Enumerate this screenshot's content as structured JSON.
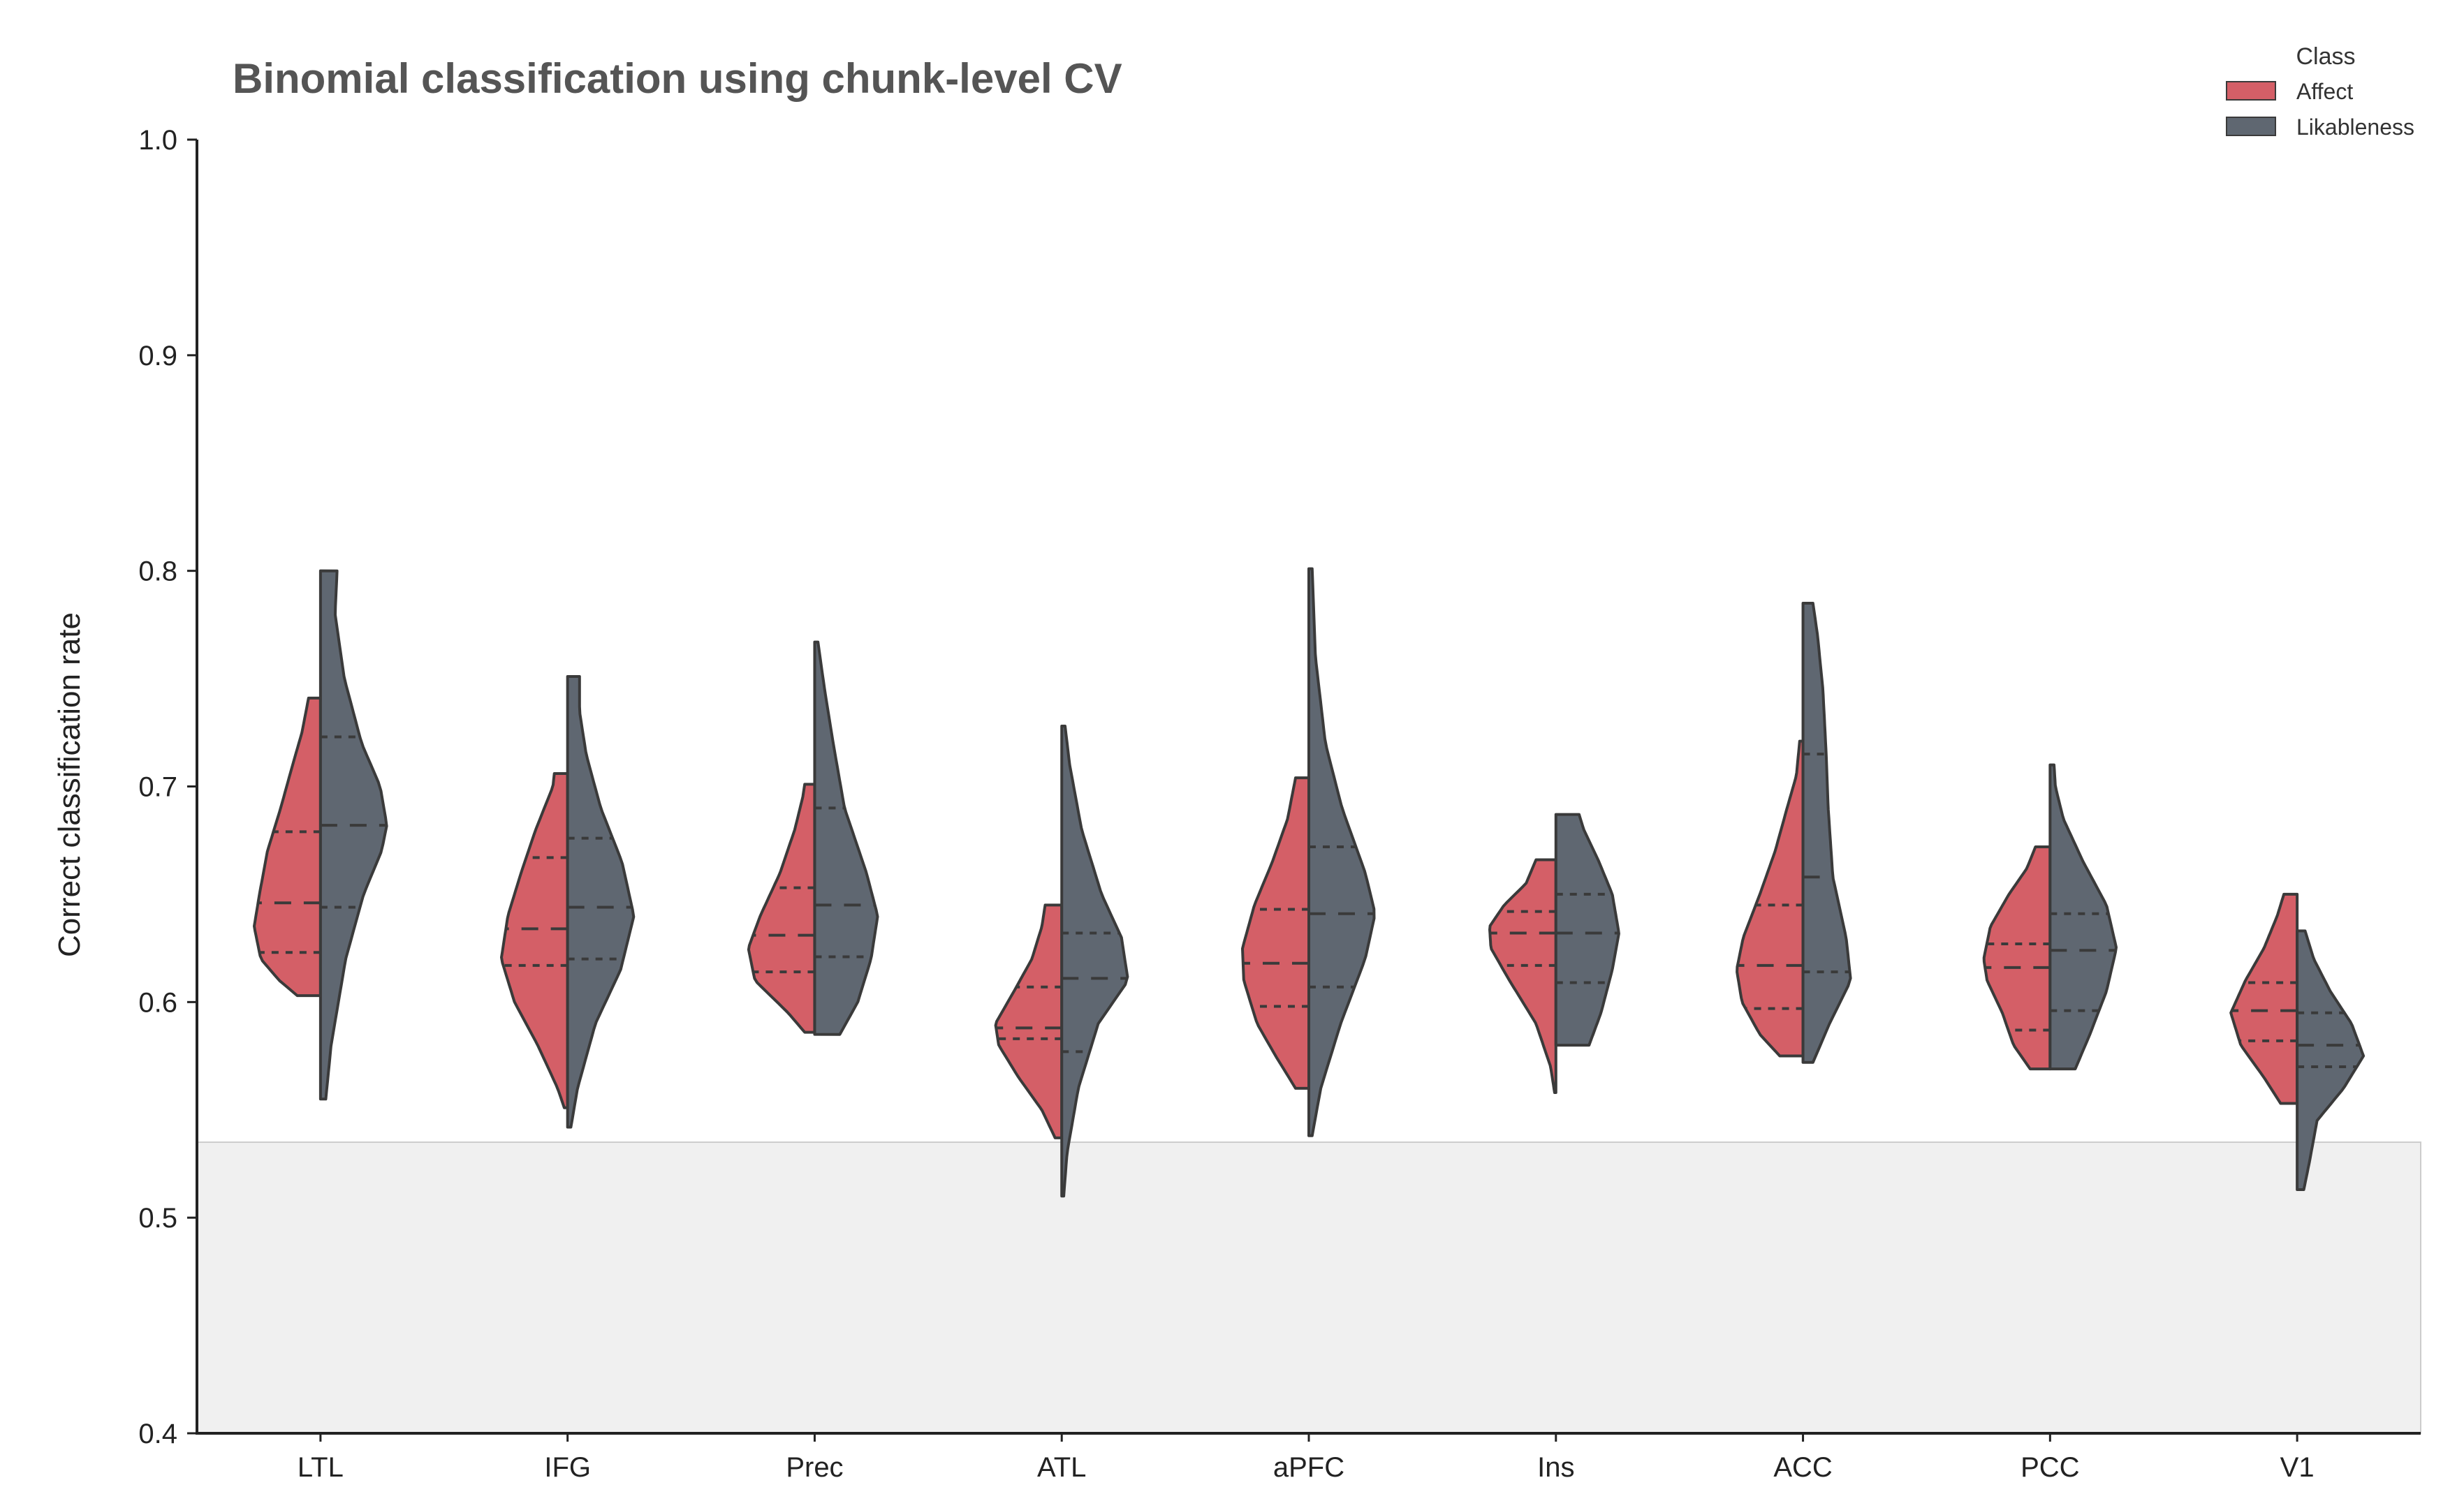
{
  "chart_data": {
    "type": "violin",
    "title": "Binomial classification using chunk-level CV",
    "xlabel": "",
    "ylabel": "Correct classification rate",
    "ylim": [
      0.4,
      1.0
    ],
    "yticks": [
      "0.4",
      "0.5",
      "0.6",
      "0.7",
      "0.8",
      "0.9",
      "1.0"
    ],
    "chance_region": [
      0.4,
      0.535
    ],
    "grid": false,
    "legend": {
      "title": "Class",
      "placement": "top-right"
    },
    "categories": [
      "LTL",
      "IFG",
      "Prec",
      "ATL",
      "aPFC",
      "Ins",
      "ACC",
      "PCC",
      "V1"
    ],
    "series": [
      {
        "name": "Affect",
        "color": "#d45f67",
        "distributions": [
          {
            "min": 0.603,
            "max": 0.741,
            "q1": 0.623,
            "median": 0.646,
            "q3": 0.679,
            "density": [
              [
                0.603,
                0.35
              ],
              [
                0.61,
                0.62
              ],
              [
                0.62,
                0.9
              ],
              [
                0.635,
                1.0
              ],
              [
                0.65,
                0.92
              ],
              [
                0.67,
                0.8
              ],
              [
                0.69,
                0.6
              ],
              [
                0.71,
                0.42
              ],
              [
                0.725,
                0.28
              ],
              [
                0.741,
                0.18
              ]
            ]
          },
          {
            "min": 0.551,
            "max": 0.706,
            "q1": 0.617,
            "median": 0.634,
            "q3": 0.667,
            "density": [
              [
                0.551,
                0.05
              ],
              [
                0.56,
                0.15
              ],
              [
                0.58,
                0.45
              ],
              [
                0.6,
                0.8
              ],
              [
                0.62,
                1.0
              ],
              [
                0.64,
                0.9
              ],
              [
                0.66,
                0.7
              ],
              [
                0.68,
                0.48
              ],
              [
                0.7,
                0.22
              ],
              [
                0.706,
                0.2
              ]
            ]
          },
          {
            "min": 0.586,
            "max": 0.701,
            "q1": 0.614,
            "median": 0.631,
            "q3": 0.653,
            "density": [
              [
                0.586,
                0.15
              ],
              [
                0.595,
                0.4
              ],
              [
                0.61,
                0.9
              ],
              [
                0.625,
                1.0
              ],
              [
                0.64,
                0.82
              ],
              [
                0.66,
                0.52
              ],
              [
                0.68,
                0.3
              ],
              [
                0.695,
                0.18
              ],
              [
                0.701,
                0.15
              ]
            ]
          },
          {
            "min": 0.537,
            "max": 0.645,
            "q1": 0.583,
            "median": 0.588,
            "q3": 0.607,
            "density": [
              [
                0.537,
                0.1
              ],
              [
                0.55,
                0.3
              ],
              [
                0.565,
                0.65
              ],
              [
                0.58,
                0.95
              ],
              [
                0.59,
                1.0
              ],
              [
                0.605,
                0.72
              ],
              [
                0.62,
                0.45
              ],
              [
                0.635,
                0.3
              ],
              [
                0.645,
                0.25
              ]
            ]
          },
          {
            "min": 0.56,
            "max": 0.704,
            "q1": 0.598,
            "median": 0.618,
            "q3": 0.643,
            "density": [
              [
                0.56,
                0.2
              ],
              [
                0.575,
                0.5
              ],
              [
                0.59,
                0.78
              ],
              [
                0.61,
                0.98
              ],
              [
                0.625,
                1.0
              ],
              [
                0.645,
                0.82
              ],
              [
                0.665,
                0.55
              ],
              [
                0.685,
                0.32
              ],
              [
                0.704,
                0.2
              ]
            ]
          },
          {
            "min": 0.558,
            "max": 0.666,
            "q1": 0.617,
            "median": 0.632,
            "q3": 0.642,
            "density": [
              [
                0.558,
                0.02
              ],
              [
                0.57,
                0.08
              ],
              [
                0.59,
                0.3
              ],
              [
                0.61,
                0.7
              ],
              [
                0.625,
                0.98
              ],
              [
                0.635,
                1.0
              ],
              [
                0.645,
                0.78
              ],
              [
                0.655,
                0.45
              ],
              [
                0.666,
                0.3
              ]
            ]
          },
          {
            "min": 0.575,
            "max": 0.721,
            "q1": 0.597,
            "median": 0.617,
            "q3": 0.645,
            "density": [
              [
                0.575,
                0.35
              ],
              [
                0.585,
                0.65
              ],
              [
                0.6,
                0.92
              ],
              [
                0.615,
                1.0
              ],
              [
                0.63,
                0.9
              ],
              [
                0.65,
                0.65
              ],
              [
                0.67,
                0.42
              ],
              [
                0.69,
                0.24
              ],
              [
                0.705,
                0.1
              ],
              [
                0.721,
                0.05
              ]
            ]
          },
          {
            "min": 0.569,
            "max": 0.672,
            "q1": 0.587,
            "median": 0.616,
            "q3": 0.627,
            "density": [
              [
                0.569,
                0.3
              ],
              [
                0.58,
                0.55
              ],
              [
                0.595,
                0.72
              ],
              [
                0.61,
                0.95
              ],
              [
                0.62,
                1.0
              ],
              [
                0.635,
                0.9
              ],
              [
                0.65,
                0.62
              ],
              [
                0.662,
                0.35
              ],
              [
                0.672,
                0.22
              ]
            ]
          },
          {
            "min": 0.553,
            "max": 0.65,
            "q1": 0.582,
            "median": 0.596,
            "q3": 0.609,
            "density": [
              [
                0.553,
                0.25
              ],
              [
                0.565,
                0.5
              ],
              [
                0.58,
                0.85
              ],
              [
                0.595,
                1.0
              ],
              [
                0.61,
                0.78
              ],
              [
                0.625,
                0.5
              ],
              [
                0.64,
                0.3
              ],
              [
                0.65,
                0.2
              ]
            ]
          }
        ]
      },
      {
        "name": "Likableness",
        "color": "#5f6771",
        "distributions": [
          {
            "min": 0.555,
            "max": 0.8,
            "q1": 0.644,
            "median": 0.682,
            "q3": 0.723,
            "density": [
              [
                0.555,
                0.08
              ],
              [
                0.58,
                0.16
              ],
              [
                0.62,
                0.38
              ],
              [
                0.65,
                0.65
              ],
              [
                0.67,
                0.92
              ],
              [
                0.682,
                1.0
              ],
              [
                0.7,
                0.9
              ],
              [
                0.72,
                0.62
              ],
              [
                0.75,
                0.36
              ],
              [
                0.78,
                0.22
              ],
              [
                0.8,
                0.25
              ]
            ]
          },
          {
            "min": 0.542,
            "max": 0.751,
            "q1": 0.62,
            "median": 0.644,
            "q3": 0.676,
            "density": [
              [
                0.542,
                0.05
              ],
              [
                0.56,
                0.15
              ],
              [
                0.59,
                0.42
              ],
              [
                0.615,
                0.8
              ],
              [
                0.64,
                1.0
              ],
              [
                0.665,
                0.82
              ],
              [
                0.69,
                0.5
              ],
              [
                0.715,
                0.28
              ],
              [
                0.735,
                0.18
              ],
              [
                0.751,
                0.18
              ]
            ]
          },
          {
            "min": 0.585,
            "max": 0.767,
            "q1": 0.621,
            "median": 0.645,
            "q3": 0.69,
            "density": [
              [
                0.585,
                0.38
              ],
              [
                0.6,
                0.65
              ],
              [
                0.62,
                0.85
              ],
              [
                0.64,
                0.95
              ],
              [
                0.66,
                0.78
              ],
              [
                0.69,
                0.45
              ],
              [
                0.72,
                0.28
              ],
              [
                0.745,
                0.15
              ],
              [
                0.767,
                0.05
              ]
            ]
          },
          {
            "min": 0.51,
            "max": 0.728,
            "q1": 0.577,
            "median": 0.611,
            "q3": 0.632,
            "density": [
              [
                0.51,
                0.03
              ],
              [
                0.53,
                0.08
              ],
              [
                0.56,
                0.25
              ],
              [
                0.59,
                0.55
              ],
              [
                0.61,
                1.0
              ],
              [
                0.63,
                0.9
              ],
              [
                0.65,
                0.6
              ],
              [
                0.68,
                0.3
              ],
              [
                0.71,
                0.12
              ],
              [
                0.728,
                0.05
              ]
            ]
          },
          {
            "min": 0.538,
            "max": 0.801,
            "q1": 0.607,
            "median": 0.641,
            "q3": 0.672,
            "density": [
              [
                0.538,
                0.05
              ],
              [
                0.56,
                0.18
              ],
              [
                0.59,
                0.48
              ],
              [
                0.62,
                0.85
              ],
              [
                0.641,
                1.0
              ],
              [
                0.66,
                0.85
              ],
              [
                0.69,
                0.5
              ],
              [
                0.72,
                0.25
              ],
              [
                0.76,
                0.1
              ],
              [
                0.801,
                0.05
              ]
            ]
          },
          {
            "min": 0.58,
            "max": 0.687,
            "q1": 0.609,
            "median": 0.632,
            "q3": 0.65,
            "density": [
              [
                0.58,
                0.5
              ],
              [
                0.595,
                0.68
              ],
              [
                0.615,
                0.85
              ],
              [
                0.632,
                0.95
              ],
              [
                0.65,
                0.85
              ],
              [
                0.665,
                0.65
              ],
              [
                0.68,
                0.42
              ],
              [
                0.687,
                0.35
              ]
            ]
          },
          {
            "min": 0.572,
            "max": 0.785,
            "q1": 0.614,
            "median": 0.658,
            "q3": 0.715,
            "density": [
              [
                0.572,
                0.15
              ],
              [
                0.59,
                0.4
              ],
              [
                0.61,
                0.72
              ],
              [
                0.63,
                0.65
              ],
              [
                0.658,
                0.45
              ],
              [
                0.69,
                0.38
              ],
              [
                0.715,
                0.35
              ],
              [
                0.745,
                0.3
              ],
              [
                0.77,
                0.22
              ],
              [
                0.785,
                0.15
              ]
            ]
          },
          {
            "min": 0.569,
            "max": 0.71,
            "q1": 0.596,
            "median": 0.624,
            "q3": 0.641,
            "density": [
              [
                0.569,
                0.38
              ],
              [
                0.585,
                0.6
              ],
              [
                0.605,
                0.85
              ],
              [
                0.625,
                1.0
              ],
              [
                0.645,
                0.85
              ],
              [
                0.665,
                0.5
              ],
              [
                0.685,
                0.2
              ],
              [
                0.7,
                0.08
              ],
              [
                0.71,
                0.06
              ]
            ]
          },
          {
            "min": 0.513,
            "max": 0.633,
            "q1": 0.57,
            "median": 0.58,
            "q3": 0.595,
            "density": [
              [
                0.513,
                0.1
              ],
              [
                0.525,
                0.18
              ],
              [
                0.545,
                0.3
              ],
              [
                0.56,
                0.7
              ],
              [
                0.575,
                1.0
              ],
              [
                0.59,
                0.82
              ],
              [
                0.605,
                0.5
              ],
              [
                0.62,
                0.25
              ],
              [
                0.633,
                0.12
              ]
            ]
          }
        ]
      }
    ]
  },
  "colors": {
    "edge": "#3a3a3a",
    "chance_fill": "#f0f0f0",
    "axis": "#222222"
  }
}
